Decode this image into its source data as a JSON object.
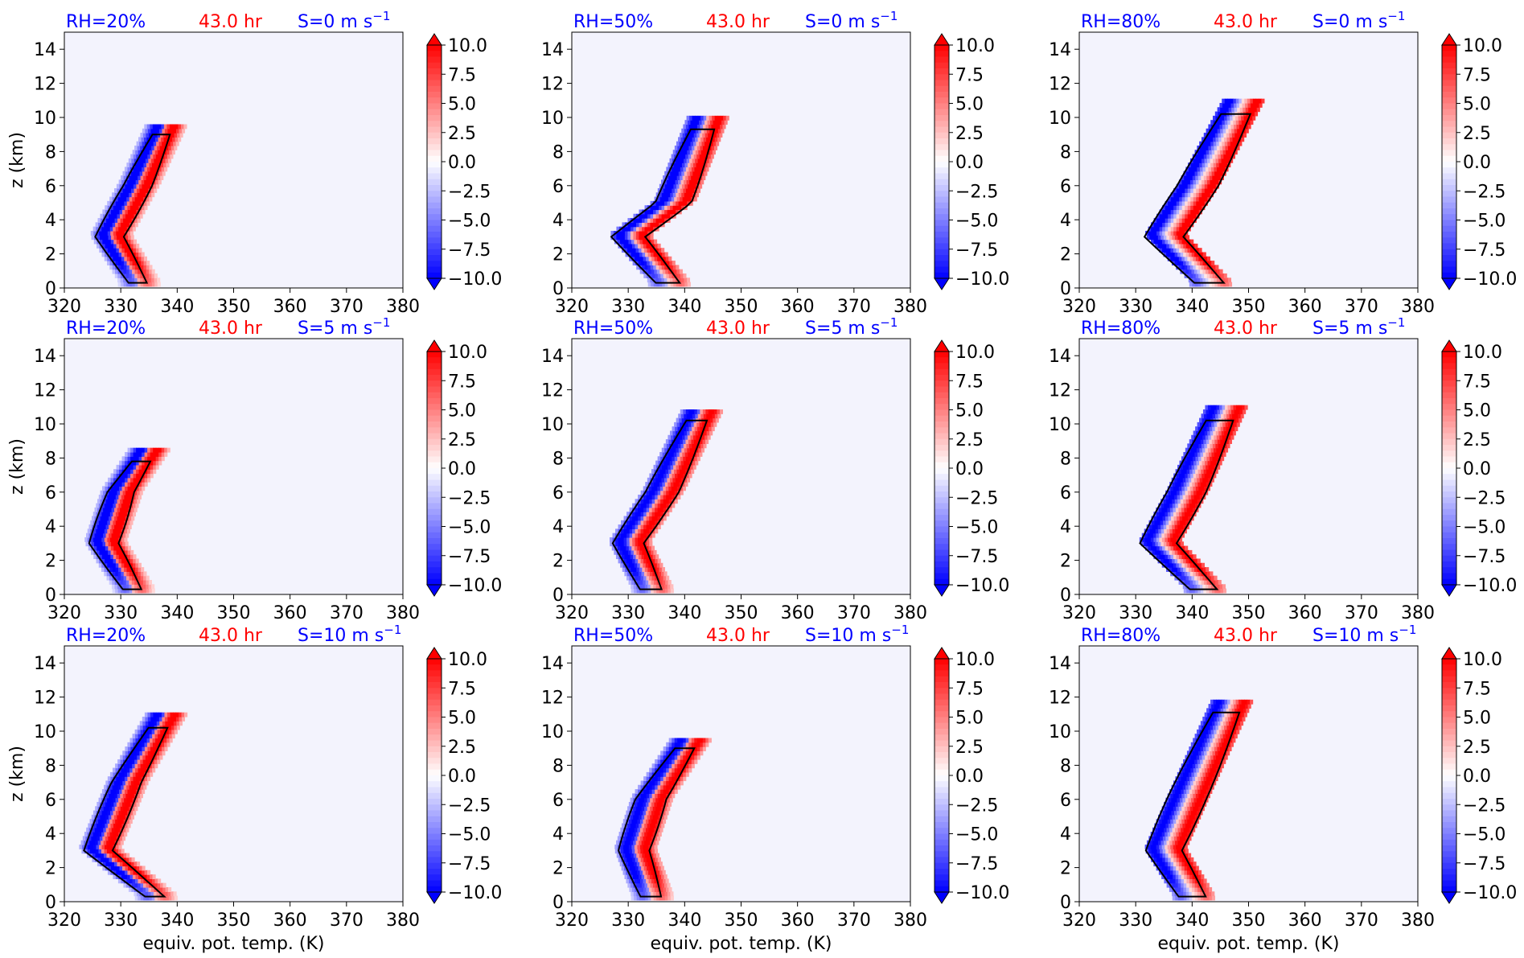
{
  "figure": {
    "time_label": "43.0 hr",
    "xlabel": "equiv. pot. temp. (K)",
    "ylabel": "z (km)",
    "colors": {
      "blue_text": "#0000ff",
      "red_text": "#ff0000",
      "background": "#f3f3fd",
      "contour": "#000000"
    },
    "colorbar": {
      "ticks": [
        "10.0",
        "7.5",
        "5.0",
        "2.5",
        "0.0",
        "−2.5",
        "−5.0",
        "−7.5",
        "−10.0"
      ],
      "range": [
        -10,
        10
      ],
      "extend": "both",
      "colormap": "bwr"
    }
  },
  "chart_data": [
    {
      "type": "contourf",
      "rh": "RH=20%",
      "shear": "S=0 m s",
      "xlim": [
        320,
        380
      ],
      "ylim": [
        0,
        15
      ],
      "xticks": [
        "320",
        "330",
        "340",
        "350",
        "360",
        "370",
        "380"
      ],
      "yticks": [
        "0",
        "2",
        "4",
        "6",
        "8",
        "10",
        "12",
        "14"
      ],
      "ridge": [
        [
          333,
          0.3
        ],
        [
          328,
          3
        ],
        [
          333,
          6
        ],
        [
          338,
          9.6
        ]
      ],
      "spread": 1.5
    },
    {
      "type": "contourf",
      "rh": "RH=50%",
      "shear": "S=0 m s",
      "xlim": [
        320,
        380
      ],
      "ylim": [
        0,
        15
      ],
      "xticks": [
        "320",
        "330",
        "340",
        "350",
        "360",
        "370",
        "380"
      ],
      "yticks": [
        "0",
        "2",
        "4",
        "6",
        "8",
        "10",
        "12",
        "14"
      ],
      "ridge": [
        [
          337,
          0.3
        ],
        [
          330,
          3
        ],
        [
          338,
          5
        ],
        [
          344,
          10
        ]
      ],
      "spread": 2
    },
    {
      "type": "contourf",
      "rh": "RH=80%",
      "shear": "S=0 m s",
      "xlim": [
        320,
        380
      ],
      "ylim": [
        0,
        15
      ],
      "xticks": [
        "320",
        "330",
        "340",
        "350",
        "360",
        "370",
        "380"
      ],
      "yticks": [
        "0",
        "2",
        "4",
        "6",
        "8",
        "10",
        "12",
        "14"
      ],
      "ridge": [
        [
          343,
          0.3
        ],
        [
          335,
          3
        ],
        [
          341,
          6
        ],
        [
          349,
          11
        ]
      ],
      "spread": 2.5
    },
    {
      "type": "contourf",
      "rh": "RH=20%",
      "shear": "S=5 m s",
      "xlim": [
        320,
        380
      ],
      "ylim": [
        0,
        15
      ],
      "xticks": [
        "320",
        "330",
        "340",
        "350",
        "360",
        "370",
        "380"
      ],
      "yticks": [
        "0",
        "2",
        "4",
        "6",
        "8",
        "10",
        "12",
        "14"
      ],
      "ridge": [
        [
          332,
          0.3
        ],
        [
          327,
          3
        ],
        [
          330,
          6
        ],
        [
          335,
          8.5
        ]
      ],
      "spread": 1.5
    },
    {
      "type": "contourf",
      "rh": "RH=50%",
      "shear": "S=5 m s",
      "xlim": [
        320,
        380
      ],
      "ylim": [
        0,
        15
      ],
      "xticks": [
        "320",
        "330",
        "340",
        "350",
        "360",
        "370",
        "380"
      ],
      "yticks": [
        "0",
        "2",
        "4",
        "6",
        "8",
        "10",
        "12",
        "14"
      ],
      "ridge": [
        [
          334,
          0.3
        ],
        [
          330,
          3
        ],
        [
          336,
          6
        ],
        [
          343,
          10.8
        ]
      ],
      "spread": 1.8
    },
    {
      "type": "contourf",
      "rh": "RH=80%",
      "shear": "S=5 m s",
      "xlim": [
        320,
        380
      ],
      "ylim": [
        0,
        15
      ],
      "xticks": [
        "320",
        "330",
        "340",
        "350",
        "360",
        "370",
        "380"
      ],
      "yticks": [
        "0",
        "2",
        "4",
        "6",
        "8",
        "10",
        "12",
        "14"
      ],
      "ridge": [
        [
          342,
          0.3
        ],
        [
          334,
          3
        ],
        [
          339,
          6
        ],
        [
          346,
          11
        ]
      ],
      "spread": 2.3
    },
    {
      "type": "contourf",
      "rh": "RH=20%",
      "shear": "S=10 m s",
      "xlim": [
        320,
        380
      ],
      "ylim": [
        0,
        15
      ],
      "xticks": [
        "320",
        "330",
        "340",
        "350",
        "360",
        "370",
        "380"
      ],
      "yticks": [
        "0",
        "2",
        "4",
        "6",
        "8",
        "10",
        "12",
        "14"
      ],
      "ridge": [
        [
          336,
          0.3
        ],
        [
          326,
          3
        ],
        [
          331,
          7
        ],
        [
          338,
          11
        ]
      ],
      "spread": 1.6
    },
    {
      "type": "contourf",
      "rh": "RH=50%",
      "shear": "S=10 m s",
      "xlim": [
        320,
        380
      ],
      "ylim": [
        0,
        15
      ],
      "xticks": [
        "320",
        "330",
        "340",
        "350",
        "360",
        "370",
        "380"
      ],
      "yticks": [
        "0",
        "2",
        "4",
        "6",
        "8",
        "10",
        "12",
        "14"
      ],
      "ridge": [
        [
          334,
          0.3
        ],
        [
          331,
          3
        ],
        [
          334,
          6
        ],
        [
          341,
          9.5
        ]
      ],
      "spread": 1.7
    },
    {
      "type": "contourf",
      "rh": "RH=80%",
      "shear": "S=10 m s",
      "xlim": [
        320,
        380
      ],
      "ylim": [
        0,
        15
      ],
      "xticks": [
        "320",
        "330",
        "340",
        "350",
        "360",
        "370",
        "380"
      ],
      "yticks": [
        "0",
        "2",
        "4",
        "6",
        "8",
        "10",
        "12",
        "14"
      ],
      "ridge": [
        [
          340,
          0.3
        ],
        [
          335,
          3
        ],
        [
          339,
          6
        ],
        [
          347,
          11.8
        ]
      ],
      "spread": 2.3
    }
  ]
}
